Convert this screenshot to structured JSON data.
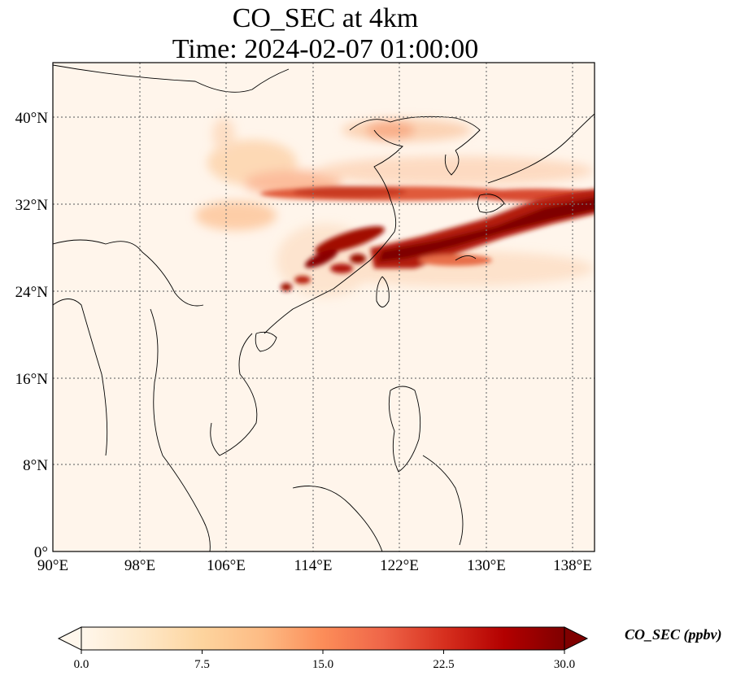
{
  "title": "CO_SEC at 4km",
  "subtitle": "Time: 2024-02-07 01:00:00",
  "map": {
    "lon_range": [
      90,
      140
    ],
    "lat_range": [
      0,
      45
    ],
    "lon_ticks": [
      "90°E",
      "98°E",
      "106°E",
      "114°E",
      "122°E",
      "130°E",
      "138°E"
    ],
    "lat_ticks": [
      "0°",
      "8°N",
      "16°N",
      "24°N",
      "32°N",
      "40°N"
    ],
    "gridlines": true,
    "background_color": "#fff5eb",
    "land_outline_color": "#000000"
  },
  "colorbar": {
    "label": "CO_SEC (ppbv)",
    "min": 0.0,
    "max": 30.0,
    "ticks": [
      "0.0",
      "7.5",
      "15.0",
      "22.5",
      "30.0"
    ],
    "extend": "both",
    "colormap": "OrRd",
    "colors": [
      "#fff7ec",
      "#fee8c8",
      "#fdd49e",
      "#fdbb84",
      "#fc8d59",
      "#ef6548",
      "#d7301f",
      "#b30000",
      "#7f0000"
    ]
  }
}
